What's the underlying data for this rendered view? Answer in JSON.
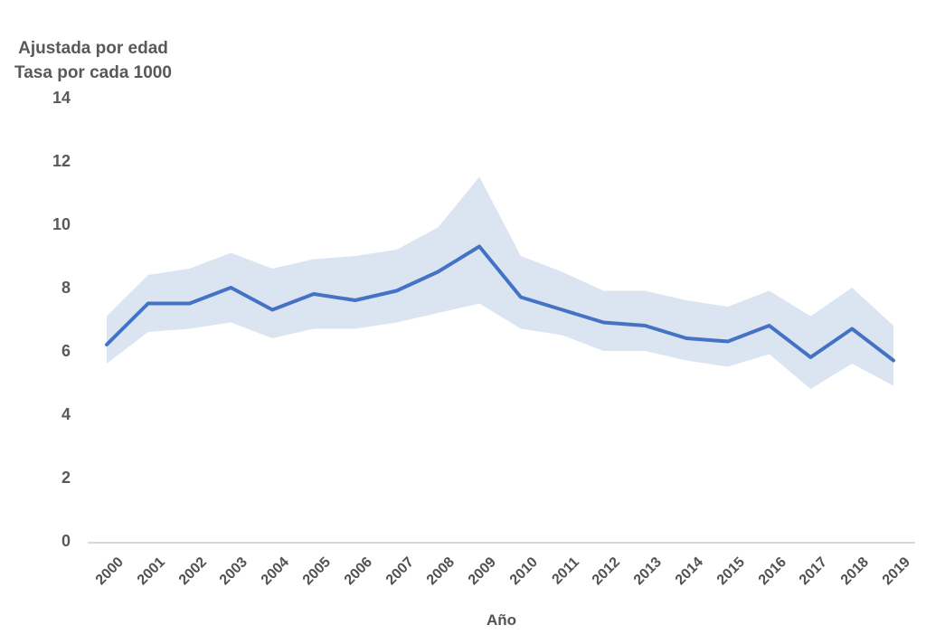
{
  "chart_data": {
    "type": "line",
    "ylabel_lines": [
      "Ajustada por edad",
      "Tasa por cada 1000"
    ],
    "xlabel": "Año",
    "categories": [
      "2000",
      "2001",
      "2002",
      "2003",
      "2004",
      "2005",
      "2006",
      "2007",
      "2008",
      "2009",
      "2010",
      "2011",
      "2012",
      "2013",
      "2014",
      "2015",
      "2016",
      "2017",
      "2018",
      "2019"
    ],
    "series": [
      {
        "name": "rate_line",
        "values": [
          6.2,
          7.5,
          7.5,
          8.0,
          7.3,
          7.8,
          7.6,
          7.9,
          8.5,
          9.3,
          7.7,
          7.3,
          6.9,
          6.8,
          6.4,
          6.3,
          6.8,
          5.8,
          6.7,
          5.7
        ]
      },
      {
        "name": "band_upper",
        "values": [
          7.1,
          8.4,
          8.6,
          9.1,
          8.6,
          8.9,
          9.0,
          9.2,
          9.9,
          11.5,
          9.0,
          8.5,
          7.9,
          7.9,
          7.6,
          7.4,
          7.9,
          7.1,
          8.0,
          6.8
        ]
      },
      {
        "name": "band_lower",
        "values": [
          5.6,
          6.6,
          6.7,
          6.9,
          6.4,
          6.7,
          6.7,
          6.9,
          7.2,
          7.5,
          6.7,
          6.5,
          6.0,
          6.0,
          5.7,
          5.5,
          5.9,
          4.8,
          5.6,
          4.9
        ]
      }
    ],
    "yticks": [
      0,
      2,
      4,
      6,
      8,
      10,
      12,
      14
    ],
    "ylim": [
      0,
      14
    ],
    "grid": false,
    "legend": "none",
    "colors": {
      "line": "#4472c4",
      "band": "#dbe5f2",
      "text": "#595959",
      "axis_line": "#d9d9d9",
      "background": "#ffffff"
    }
  }
}
